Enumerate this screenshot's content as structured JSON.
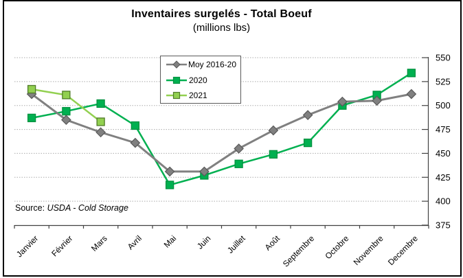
{
  "window": {
    "background": "#ffffff",
    "border_color": "#000000"
  },
  "chart_data": {
    "type": "line",
    "title": "Inventaires surgelés - Total Boeuf",
    "subtitle": "(millions lbs)",
    "categories": [
      "Janvier",
      "Février",
      "Mars",
      "Avril",
      "Mai",
      "Juin",
      "Juillet",
      "Août",
      "Septembre",
      "Octobre",
      "Novembre",
      "Decembre"
    ],
    "xlabel": "",
    "ylabel": "",
    "ylim": [
      375,
      550
    ],
    "y_ticks": [
      375,
      400,
      425,
      450,
      475,
      500,
      525,
      550
    ],
    "y_axis_side": "right",
    "grid": "horizontal-dotted",
    "gridline_color": "#ABABAB",
    "axis_color": "#404040",
    "legend_position": "top-left-inset",
    "draw_order": [
      1,
      0,
      2
    ],
    "series": [
      {
        "name": "Moy 2016-20",
        "color": "#808080",
        "marker": "diamond",
        "marker_fill": "#808080",
        "marker_stroke": "#595959",
        "line_width": 3,
        "values": [
          512,
          485,
          472,
          461,
          431,
          431,
          455,
          474,
          490,
          504,
          505,
          512
        ]
      },
      {
        "name": "2020",
        "color": "#00B050",
        "marker": "square",
        "marker_fill": "#00B050",
        "marker_stroke": "#00913F",
        "line_width": 2.5,
        "values": [
          487,
          494,
          502,
          479,
          417,
          427,
          439,
          449,
          461,
          500,
          511,
          534
        ]
      },
      {
        "name": "2021",
        "color": "#92D050",
        "marker": "square",
        "marker_fill": "#92D050",
        "marker_stroke": "#4F7A28",
        "line_width": 2.5,
        "values": [
          517,
          511,
          483
        ]
      }
    ]
  },
  "source": {
    "prefix": "Source: ",
    "text": "USDA - Cold Storage"
  }
}
